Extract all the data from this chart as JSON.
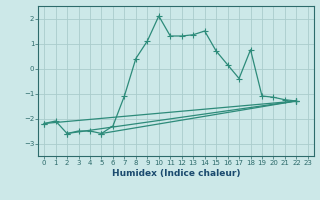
{
  "xlabel": "Humidex (Indice chaleur)",
  "bg_color": "#cce8e8",
  "grid_color": "#aacccc",
  "line_color": "#2d8b7a",
  "xlim": [
    -0.5,
    23.5
  ],
  "ylim": [
    -3.5,
    2.5
  ],
  "xticks": [
    0,
    1,
    2,
    3,
    4,
    5,
    6,
    7,
    8,
    9,
    10,
    11,
    12,
    13,
    14,
    15,
    16,
    17,
    18,
    19,
    20,
    21,
    22,
    23
  ],
  "yticks": [
    -3,
    -2,
    -1,
    0,
    1,
    2
  ],
  "line1_x": [
    0,
    1,
    2,
    3,
    4,
    5,
    6,
    7,
    8,
    9,
    10,
    11,
    12,
    13,
    14,
    15,
    16,
    17,
    18,
    19,
    20,
    21,
    22
  ],
  "line1_y": [
    -2.2,
    -2.1,
    -2.6,
    -2.5,
    -2.5,
    -2.6,
    -2.3,
    -1.1,
    0.4,
    1.1,
    2.1,
    1.3,
    1.3,
    1.35,
    1.5,
    0.7,
    0.15,
    -0.4,
    0.75,
    -1.1,
    -1.15,
    -1.25,
    -1.3
  ],
  "line2_x": [
    0,
    22
  ],
  "line2_y": [
    -2.2,
    -1.3
  ],
  "line3_x": [
    2,
    22
  ],
  "line3_y": [
    -2.6,
    -1.3
  ],
  "line4_x": [
    5,
    22
  ],
  "line4_y": [
    -2.6,
    -1.3
  ]
}
